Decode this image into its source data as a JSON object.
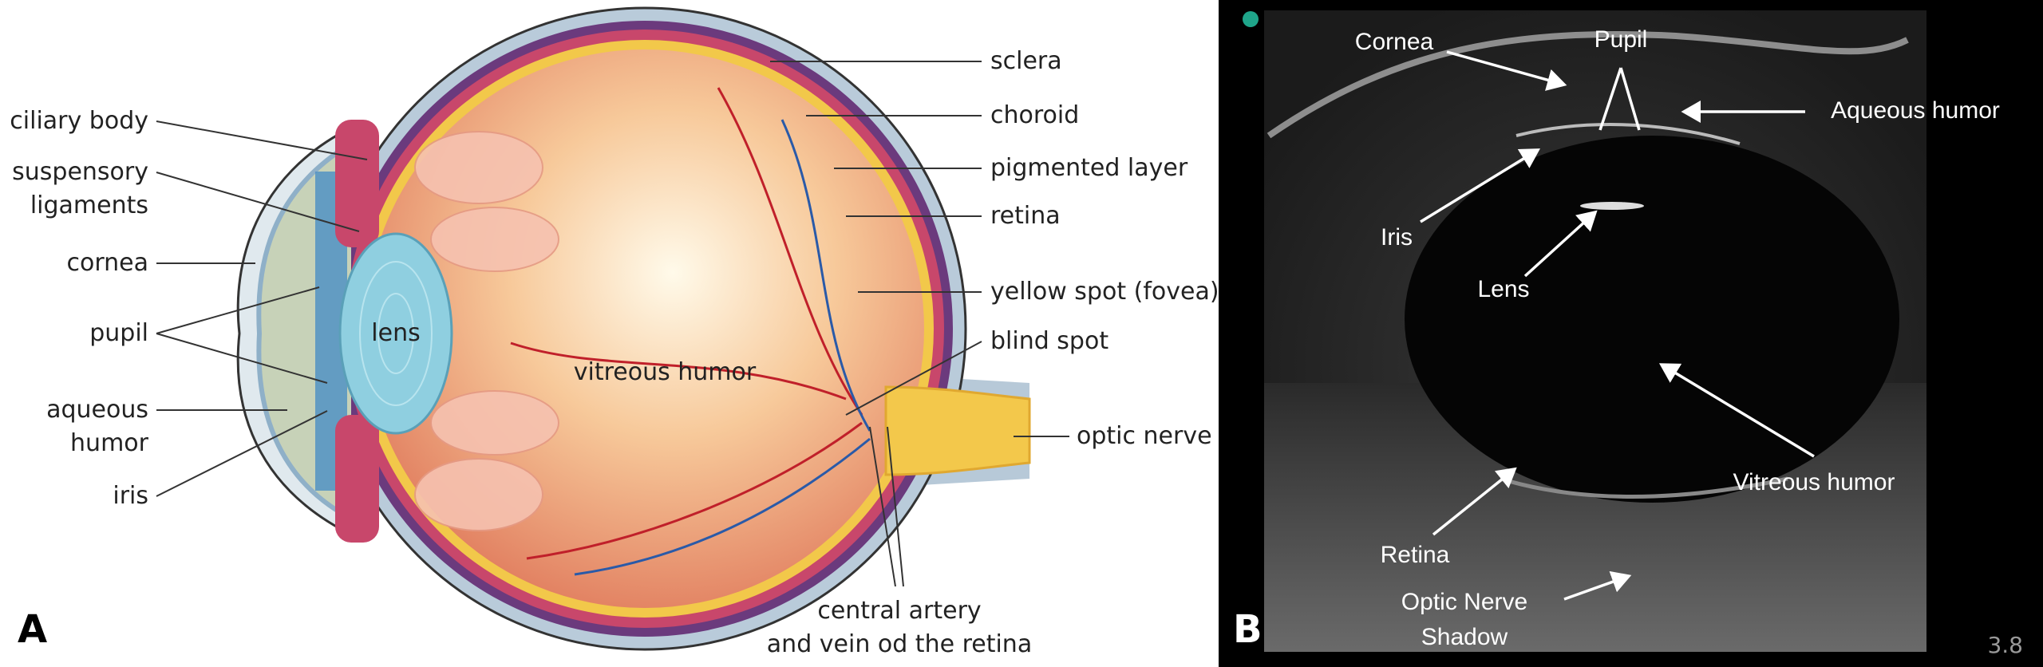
{
  "panel_a": {
    "letter": "A",
    "labels": [
      {
        "lines": [
          "sclera"
        ]
      },
      {
        "lines": [
          "choroid"
        ]
      },
      {
        "lines": [
          "pigmented layer"
        ]
      },
      {
        "lines": [
          "retina"
        ]
      },
      {
        "lines": [
          "yellow spot (fovea)"
        ]
      },
      {
        "lines": [
          "blind spot"
        ]
      },
      {
        "lines": [
          "optic nerve"
        ]
      },
      {
        "lines": [
          "central artery",
          "and vein od the retina"
        ]
      },
      {
        "lines": [
          "vitreous humor"
        ]
      },
      {
        "lines": [
          "lens"
        ]
      },
      {
        "lines": [
          "ciliary body"
        ]
      },
      {
        "lines": [
          "suspensory",
          "ligaments"
        ]
      },
      {
        "lines": [
          "cornea"
        ]
      },
      {
        "lines": [
          "pupil"
        ]
      },
      {
        "lines": [
          "aqueous",
          "humor"
        ]
      },
      {
        "lines": [
          "iris"
        ]
      }
    ]
  },
  "panel_b": {
    "letter": "B",
    "depth": "3.8",
    "labels": [
      {
        "lines": [
          "Cornea"
        ]
      },
      {
        "lines": [
          "Pupil"
        ]
      },
      {
        "lines": [
          "Aqueous humor"
        ]
      },
      {
        "lines": [
          "Iris"
        ]
      },
      {
        "lines": [
          "Lens"
        ]
      },
      {
        "lines": [
          "Vitreous humor"
        ]
      },
      {
        "lines": [
          "Retina"
        ]
      },
      {
        "lines": [
          "Optic Nerve",
          "Shadow"
        ]
      }
    ]
  }
}
